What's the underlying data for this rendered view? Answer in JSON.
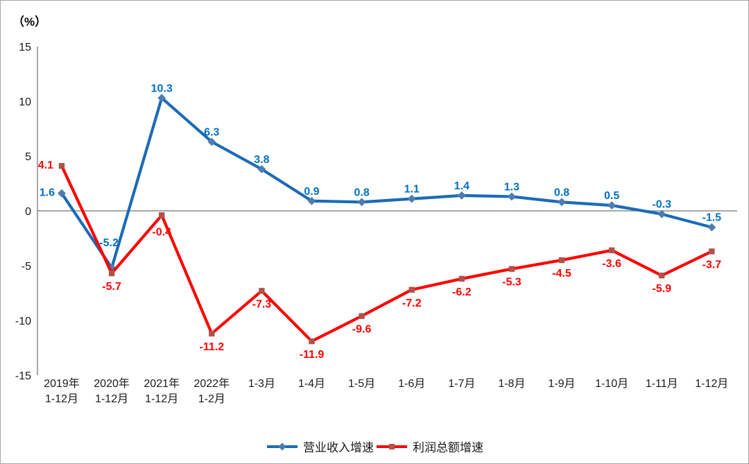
{
  "unit_label": "（%）",
  "colors": {
    "axis": "#8c8c8c",
    "tick_text": "#1a1a1a",
    "blue_line": "#1b6bb8",
    "blue_marker": "#4e7db0",
    "blue_label": "#0070c0",
    "red_line": "#ff0000",
    "red_marker": "#b0524c",
    "red_label": "#ff0000"
  },
  "chart_data": {
    "type": "line",
    "title": "",
    "ylabel": "（%）",
    "ylim": [
      -15,
      15
    ],
    "yticks": [
      15,
      10,
      5,
      0,
      -5,
      -10,
      -15
    ],
    "grid": false,
    "legend_position": "bottom",
    "categories": [
      [
        "2019年",
        "1-12月"
      ],
      [
        "2020年",
        "1-12月"
      ],
      [
        "2021年",
        "1-12月"
      ],
      [
        "2022年",
        "1-2月"
      ],
      [
        "1-3月"
      ],
      [
        "1-4月"
      ],
      [
        "1-5月"
      ],
      [
        "1-6月"
      ],
      [
        "1-7月"
      ],
      [
        "1-8月"
      ],
      [
        "1-9月"
      ],
      [
        "1-10月"
      ],
      [
        "1-11月"
      ],
      [
        "1-12月"
      ]
    ],
    "series": [
      {
        "name": "营业收入增速",
        "color": "#1b6bb8",
        "marker": "diamond",
        "marker_color": "#4e7db0",
        "label_color": "#0070c0",
        "label_position": "above",
        "values": [
          1.6,
          -5.2,
          10.3,
          6.3,
          3.8,
          0.9,
          0.8,
          1.1,
          1.4,
          1.3,
          0.8,
          0.5,
          -0.3,
          -1.5
        ]
      },
      {
        "name": "利润总额增速",
        "color": "#ff0000",
        "marker": "square",
        "marker_color": "#b0524c",
        "label_color": "#ff0000",
        "label_position": "below",
        "values": [
          4.1,
          -5.7,
          -0.4,
          -11.2,
          -7.3,
          -11.9,
          -9.6,
          -7.2,
          -6.2,
          -5.3,
          -4.5,
          -3.6,
          -5.9,
          -3.7
        ]
      }
    ]
  }
}
